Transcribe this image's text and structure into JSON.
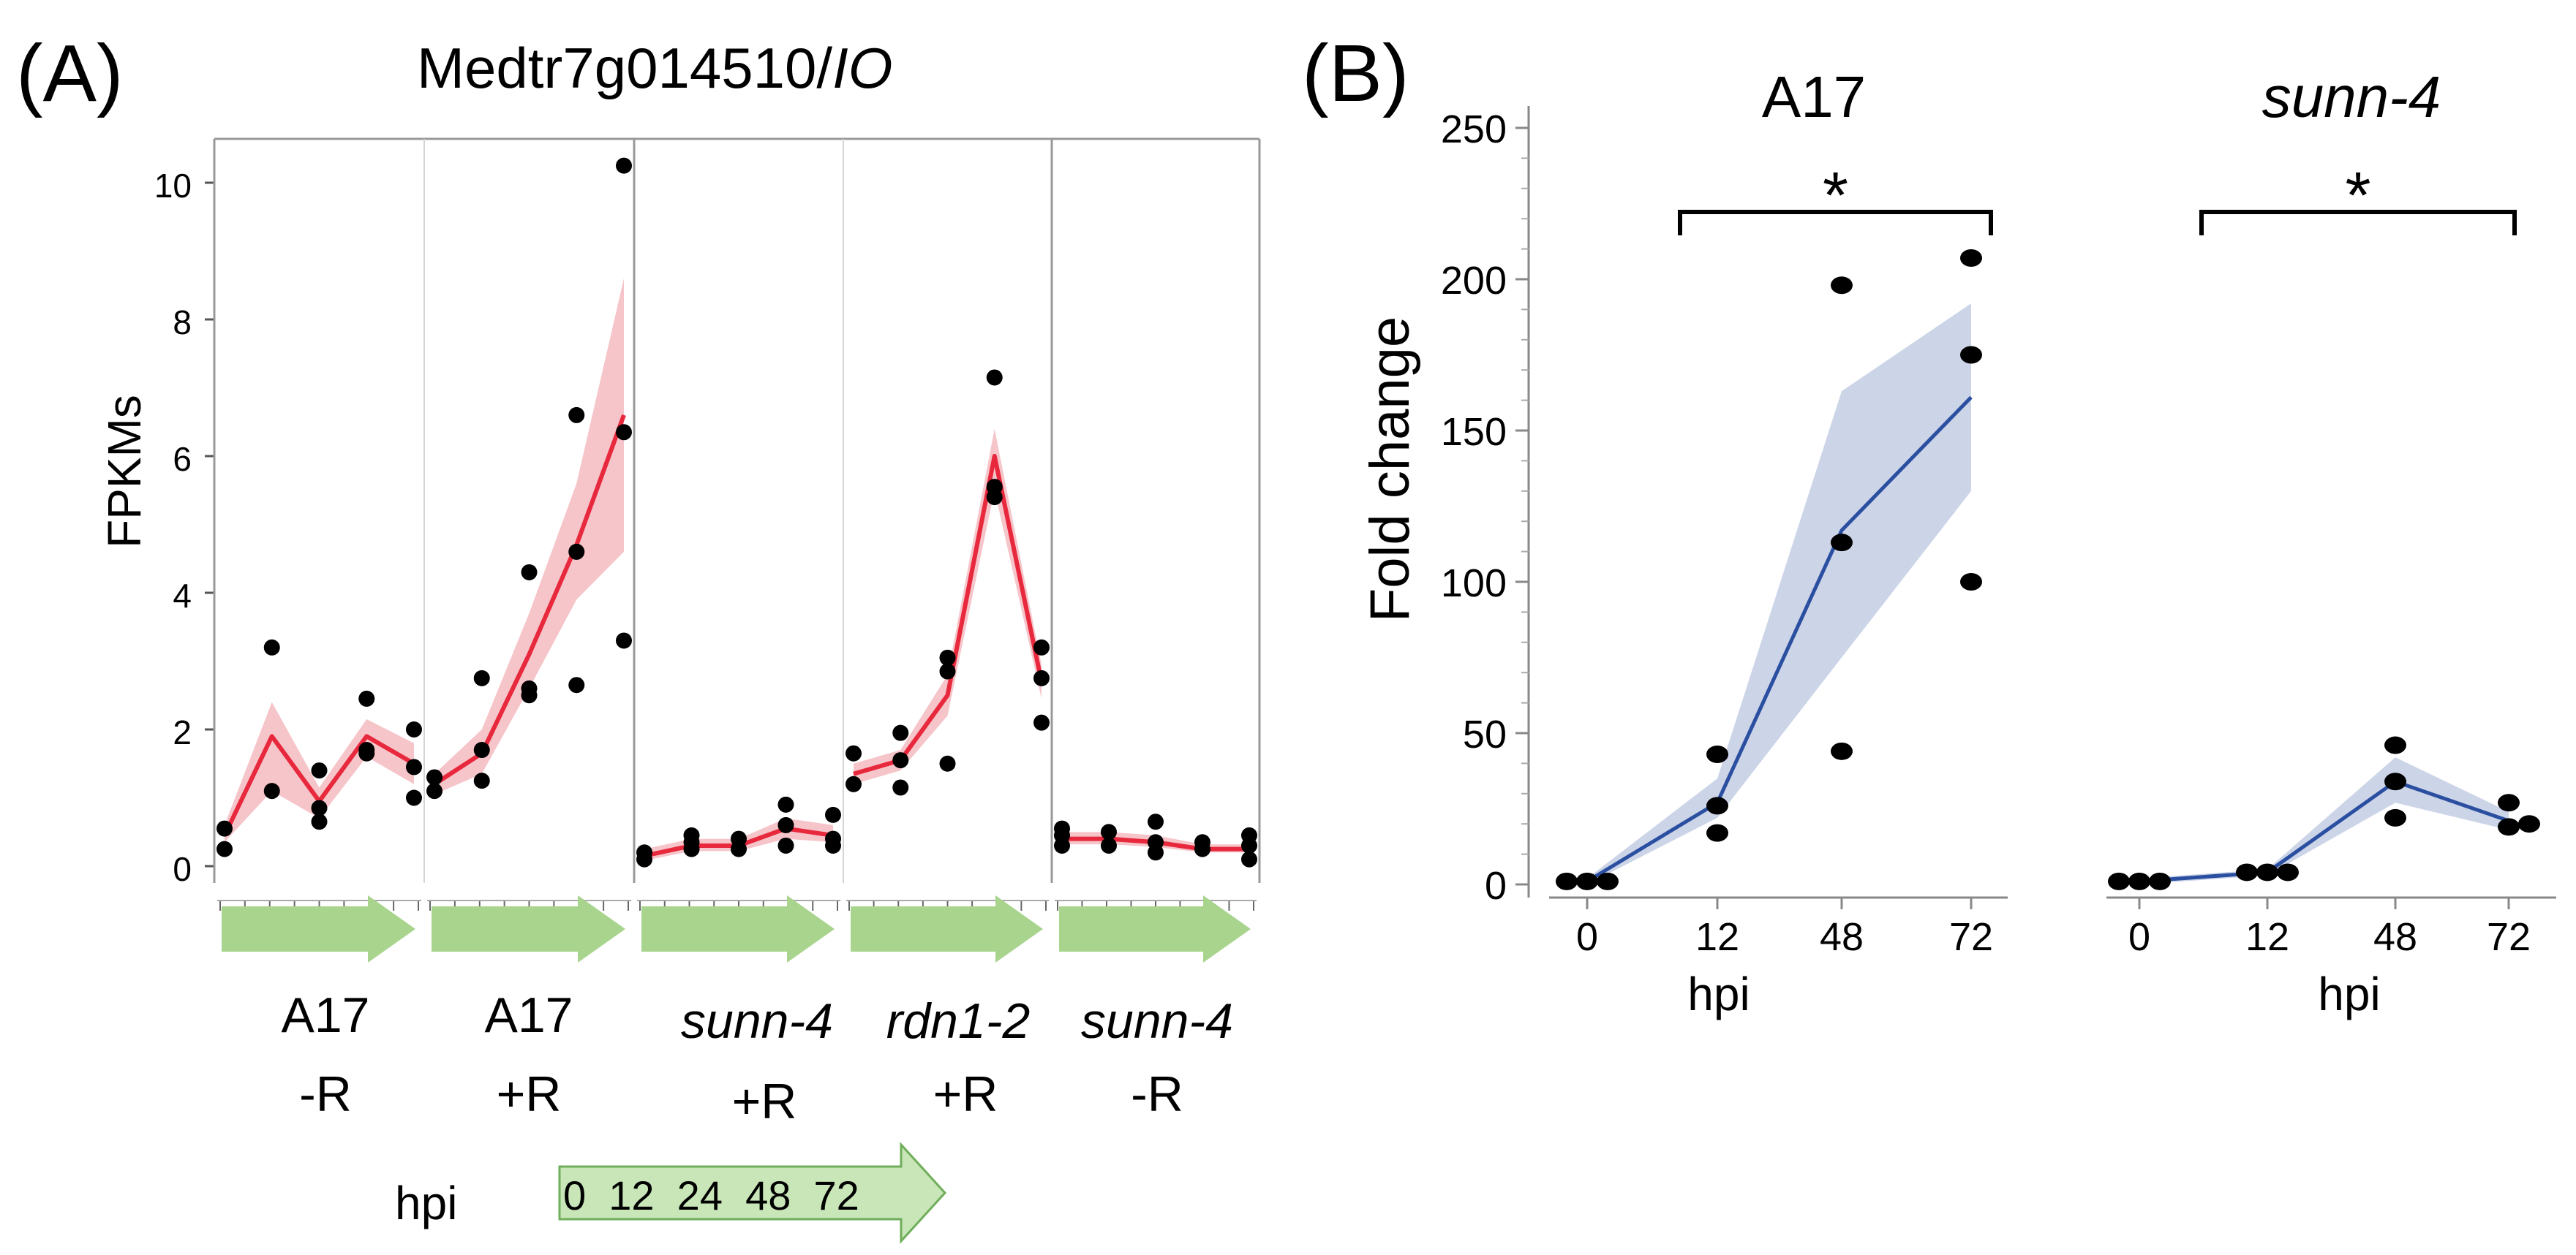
{
  "panelA": {
    "panel_label": "(A)",
    "title_gene": "Medtr7g014510/",
    "title_italic": "IO",
    "ylabel": "FPKMs",
    "yticks": [
      "0",
      "2",
      "4",
      "6",
      "8",
      "10"
    ],
    "groups": [
      {
        "line1": "A17",
        "line2": "-R"
      },
      {
        "line1": "A17",
        "line2": "+R"
      },
      {
        "line1": "sunn-4",
        "line2": "+R"
      },
      {
        "line1": "rdn1-2",
        "line2": "+R"
      },
      {
        "line1": "sunn-4",
        "line2": "-R"
      }
    ],
    "legend_label": "hpi",
    "legend_timepoints": "0  12  24  48  72"
  },
  "panelB": {
    "panel_label": "(B)",
    "ylabel": "Fold change",
    "xlabel": "hpi",
    "yticks": [
      "0",
      "50",
      "100",
      "150",
      "200",
      "250"
    ],
    "xticks": [
      "0",
      "12",
      "48",
      "72"
    ],
    "subplots": [
      {
        "title": "A17",
        "sig": "*"
      },
      {
        "title": "sunn-4",
        "sig": "*"
      }
    ]
  },
  "chart_data": [
    {
      "type": "line",
      "title": "Medtr7g014510/IO",
      "ylabel": "FPKMs",
      "xlabel": "hpi",
      "ylim": [
        0,
        10.4
      ],
      "categories": [
        "0",
        "12",
        "24",
        "48",
        "72"
      ],
      "color": "#e8283c",
      "band_color": "#f4b7bd",
      "series": [
        {
          "name": "A17 -R",
          "values": [
            0.45,
            1.9,
            0.95,
            1.9,
            1.5
          ],
          "lower": [
            0.35,
            1.1,
            0.7,
            1.6,
            1.2
          ],
          "upper": [
            0.6,
            2.4,
            1.15,
            2.15,
            1.8
          ],
          "points": [
            [
              0,
              0.25
            ],
            [
              0,
              0.55
            ],
            [
              1,
              1.1
            ],
            [
              1,
              3.2
            ],
            [
              2,
              0.65
            ],
            [
              2,
              0.85
            ],
            [
              2,
              1.4
            ],
            [
              3,
              1.65
            ],
            [
              3,
              1.7
            ],
            [
              3,
              2.45
            ],
            [
              4,
              1.0
            ],
            [
              4,
              1.45
            ],
            [
              4,
              2.0
            ]
          ]
        },
        {
          "name": "A17 +R",
          "values": [
            1.2,
            1.65,
            3.1,
            4.7,
            6.6
          ],
          "lower": [
            1.05,
            1.35,
            2.6,
            3.9,
            4.6
          ],
          "upper": [
            1.35,
            2.0,
            3.7,
            5.6,
            8.6
          ],
          "points": [
            [
              0,
              1.1
            ],
            [
              0,
              1.3
            ],
            [
              1,
              1.25
            ],
            [
              1,
              1.7
            ],
            [
              1,
              2.75
            ],
            [
              2,
              2.5
            ],
            [
              2,
              2.6
            ],
            [
              2,
              4.3
            ],
            [
              3,
              2.65
            ],
            [
              3,
              4.6
            ],
            [
              3,
              6.6
            ],
            [
              4,
              3.3
            ],
            [
              4,
              6.35
            ],
            [
              4,
              10.25
            ]
          ]
        },
        {
          "name": "sunn-4 +R",
          "values": [
            0.15,
            0.3,
            0.3,
            0.55,
            0.45
          ],
          "lower": [
            0.08,
            0.22,
            0.22,
            0.4,
            0.35
          ],
          "upper": [
            0.25,
            0.4,
            0.4,
            0.7,
            0.6
          ],
          "points": [
            [
              0,
              0.1
            ],
            [
              0,
              0.2
            ],
            [
              1,
              0.25
            ],
            [
              1,
              0.35
            ],
            [
              1,
              0.45
            ],
            [
              2,
              0.25
            ],
            [
              2,
              0.4
            ],
            [
              3,
              0.3
            ],
            [
              3,
              0.6
            ],
            [
              3,
              0.9
            ],
            [
              4,
              0.3
            ],
            [
              4,
              0.4
            ],
            [
              4,
              0.75
            ]
          ]
        },
        {
          "name": "rdn1-2 +R",
          "values": [
            1.35,
            1.55,
            2.5,
            6.0,
            2.7
          ],
          "lower": [
            1.2,
            1.4,
            2.2,
            5.5,
            2.45
          ],
          "upper": [
            1.5,
            1.7,
            2.8,
            6.4,
            2.95
          ],
          "points": [
            [
              0,
              1.2
            ],
            [
              0,
              1.65
            ],
            [
              1,
              1.15
            ],
            [
              1,
              1.55
            ],
            [
              1,
              1.95
            ],
            [
              2,
              1.5
            ],
            [
              2,
              2.85
            ],
            [
              2,
              3.05
            ],
            [
              3,
              5.4
            ],
            [
              3,
              5.55
            ],
            [
              3,
              7.15
            ],
            [
              4,
              2.1
            ],
            [
              4,
              2.75
            ],
            [
              4,
              3.2
            ]
          ]
        },
        {
          "name": "sunn-4 -R",
          "values": [
            0.4,
            0.4,
            0.35,
            0.25,
            0.25
          ],
          "lower": [
            0.32,
            0.32,
            0.28,
            0.2,
            0.2
          ],
          "upper": [
            0.5,
            0.5,
            0.45,
            0.32,
            0.32
          ],
          "points": [
            [
              0,
              0.3
            ],
            [
              0,
              0.45
            ],
            [
              0,
              0.55
            ],
            [
              1,
              0.3
            ],
            [
              1,
              0.5
            ],
            [
              2,
              0.2
            ],
            [
              2,
              0.35
            ],
            [
              2,
              0.65
            ],
            [
              3,
              0.25
            ],
            [
              3,
              0.35
            ],
            [
              4,
              0.1
            ],
            [
              4,
              0.3
            ],
            [
              4,
              0.45
            ]
          ]
        }
      ]
    },
    {
      "type": "line",
      "title": "A17",
      "ylabel": "Fold change",
      "xlabel": "hpi",
      "ylim": [
        0,
        250
      ],
      "categories": [
        "0",
        "12",
        "48",
        "72"
      ],
      "color": "#2b4fa0",
      "band_color": "#c6cfe6",
      "values": [
        1,
        27,
        117,
        161
      ],
      "lower": [
        0,
        22,
        75,
        130
      ],
      "upper": [
        2,
        35,
        163,
        192
      ],
      "points": [
        [
          0,
          1
        ],
        [
          0,
          1
        ],
        [
          0,
          1
        ],
        [
          1,
          17
        ],
        [
          1,
          26
        ],
        [
          1,
          43
        ],
        [
          2,
          44
        ],
        [
          2,
          113
        ],
        [
          2,
          198
        ],
        [
          3,
          100
        ],
        [
          3,
          175
        ],
        [
          3,
          207
        ]
      ],
      "significance": {
        "from": "12",
        "to": "72",
        "label": "*"
      }
    },
    {
      "type": "line",
      "title": "sunn-4",
      "ylabel": "Fold change",
      "xlabel": "hpi",
      "ylim": [
        0,
        250
      ],
      "categories": [
        "0",
        "12",
        "48",
        "72"
      ],
      "color": "#2b4fa0",
      "band_color": "#c6cfe6",
      "values": [
        1,
        4,
        34,
        21
      ],
      "lower": [
        0,
        3,
        27,
        18
      ],
      "upper": [
        2,
        5,
        42,
        24
      ],
      "points": [
        [
          0,
          1
        ],
        [
          0,
          1
        ],
        [
          0,
          1
        ],
        [
          1,
          4
        ],
        [
          1,
          4
        ],
        [
          1,
          4
        ],
        [
          2,
          22
        ],
        [
          2,
          34
        ],
        [
          2,
          46
        ],
        [
          3,
          19
        ],
        [
          3,
          20
        ],
        [
          3,
          27
        ]
      ],
      "significance": {
        "from": "0",
        "to": "72",
        "label": "*"
      }
    }
  ]
}
